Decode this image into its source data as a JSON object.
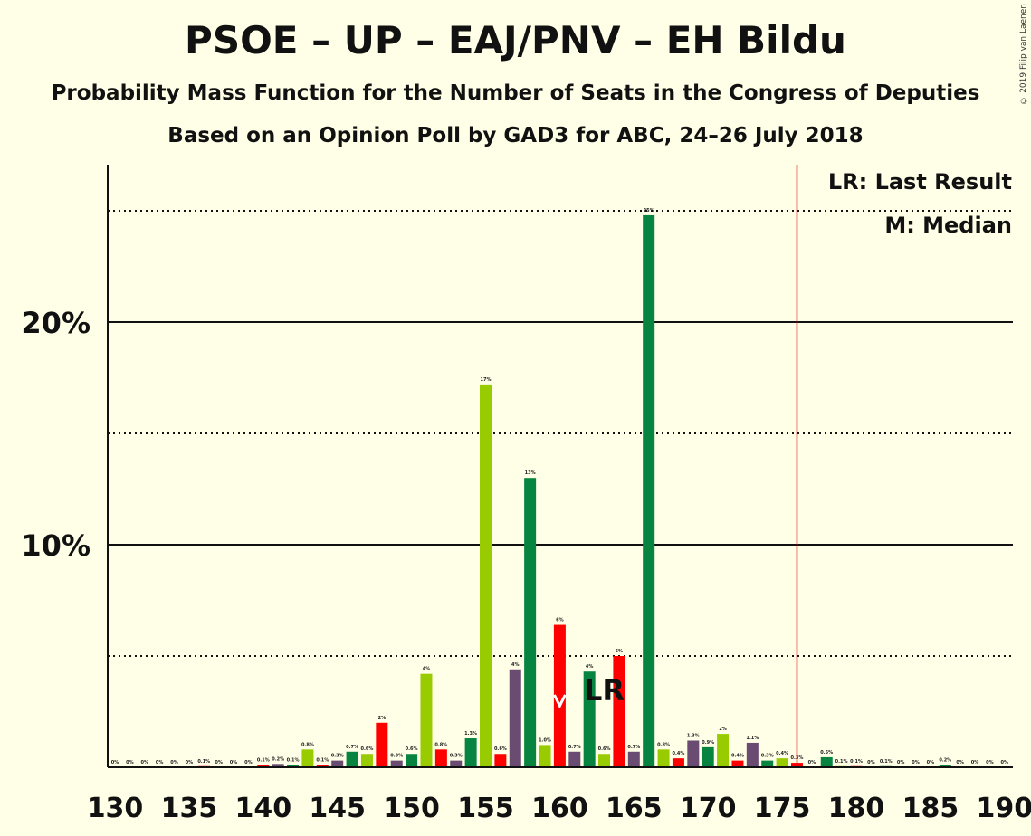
{
  "chart_data": {
    "type": "bar",
    "title": "PSOE – UP – EAJ/PNV – EH Bildu",
    "subtitle": "Probability Mass Function for the Number of Seats in the Congress of Deputies",
    "subtitle2": "Based on an Opinion Poll by GAD3 for ABC, 24–26 July 2018",
    "copyright": "© 2019 Filip van Laenen",
    "legend": [
      "LR: Last Result",
      "M: Median"
    ],
    "legend_placement": "top-right",
    "x_ticks": [
      "130",
      "135",
      "140",
      "145",
      "150",
      "155",
      "160",
      "165",
      "170",
      "175",
      "180",
      "185",
      "190"
    ],
    "y_ticks": [
      {
        "value": 10,
        "label": "10%"
      },
      {
        "value": 20,
        "label": "20%"
      }
    ],
    "dotted_gridlines": [
      5,
      15,
      25
    ],
    "xlim": [
      130,
      190
    ],
    "ylim": [
      0,
      27
    ],
    "majority_line": 176,
    "last_result": 163,
    "last_result_label": "LR",
    "median": 160,
    "colors": {
      "dark_green": "#068440",
      "light_green": "#99CC00",
      "red": "#FF0000",
      "purple": "#6A4C73",
      "majority": "#DD0000",
      "background": "#FFFEE6"
    },
    "bars": [
      {
        "x": 130,
        "value": 0,
        "label": "0%",
        "color": "dark_green"
      },
      {
        "x": 131,
        "value": 0,
        "label": "0%",
        "color": "light_green"
      },
      {
        "x": 132,
        "value": 0,
        "label": "0%",
        "color": "red"
      },
      {
        "x": 133,
        "value": 0,
        "label": "0%",
        "color": "purple"
      },
      {
        "x": 134,
        "value": 0,
        "label": "0%",
        "color": "dark_green"
      },
      {
        "x": 135,
        "value": 0,
        "label": "0%",
        "color": "light_green"
      },
      {
        "x": 136,
        "value": 0.05,
        "label": "0.1%",
        "color": "red"
      },
      {
        "x": 137,
        "value": 0,
        "label": "0%",
        "color": "purple"
      },
      {
        "x": 138,
        "value": 0,
        "label": "0%",
        "color": "dark_green"
      },
      {
        "x": 139,
        "value": 0,
        "label": "0%",
        "color": "light_green"
      },
      {
        "x": 140,
        "value": 0.1,
        "label": "0.1%",
        "color": "red"
      },
      {
        "x": 141,
        "value": 0.15,
        "label": "0.2%",
        "color": "purple"
      },
      {
        "x": 142,
        "value": 0.1,
        "label": "0.1%",
        "color": "dark_green"
      },
      {
        "x": 143,
        "value": 0.8,
        "label": "0.8%",
        "color": "light_green"
      },
      {
        "x": 144,
        "value": 0.1,
        "label": "0.1%",
        "color": "red"
      },
      {
        "x": 145,
        "value": 0.3,
        "label": "0.3%",
        "color": "purple"
      },
      {
        "x": 146,
        "value": 0.7,
        "label": "0.7%",
        "color": "dark_green"
      },
      {
        "x": 147,
        "value": 0.6,
        "label": "0.6%",
        "color": "light_green"
      },
      {
        "x": 148,
        "value": 2.0,
        "label": "2%",
        "color": "red"
      },
      {
        "x": 149,
        "value": 0.3,
        "label": "0.3%",
        "color": "purple"
      },
      {
        "x": 150,
        "value": 0.6,
        "label": "0.6%",
        "color": "dark_green"
      },
      {
        "x": 151,
        "value": 4.2,
        "label": "4%",
        "color": "light_green"
      },
      {
        "x": 152,
        "value": 0.8,
        "label": "0.8%",
        "color": "red"
      },
      {
        "x": 153,
        "value": 0.3,
        "label": "0.3%",
        "color": "purple"
      },
      {
        "x": 154,
        "value": 1.3,
        "label": "1.3%",
        "color": "dark_green"
      },
      {
        "x": 155,
        "value": 17.2,
        "label": "17%",
        "color": "light_green"
      },
      {
        "x": 156,
        "value": 0.6,
        "label": "0.6%",
        "color": "red"
      },
      {
        "x": 157,
        "value": 4.4,
        "label": "4%",
        "color": "purple"
      },
      {
        "x": 158,
        "value": 13.0,
        "label": "13%",
        "color": "dark_green"
      },
      {
        "x": 159,
        "value": 1.0,
        "label": "1.0%",
        "color": "light_green"
      },
      {
        "x": 160,
        "value": 6.4,
        "label": "6%",
        "color": "red"
      },
      {
        "x": 161,
        "value": 0.7,
        "label": "0.7%",
        "color": "purple"
      },
      {
        "x": 162,
        "value": 4.3,
        "label": "4%",
        "color": "dark_green"
      },
      {
        "x": 163,
        "value": 0.6,
        "label": "0.6%",
        "color": "light_green"
      },
      {
        "x": 164,
        "value": 5.0,
        "label": "5%",
        "color": "red"
      },
      {
        "x": 165,
        "value": 0.7,
        "label": "0.7%",
        "color": "purple"
      },
      {
        "x": 166,
        "value": 24.8,
        "label": "25%",
        "color": "dark_green"
      },
      {
        "x": 167,
        "value": 0.8,
        "label": "0.8%",
        "color": "light_green"
      },
      {
        "x": 168,
        "value": 0.4,
        "label": "0.4%",
        "color": "red"
      },
      {
        "x": 169,
        "value": 1.2,
        "label": "1.3%",
        "color": "purple"
      },
      {
        "x": 170,
        "value": 0.9,
        "label": "0.9%",
        "color": "dark_green"
      },
      {
        "x": 171,
        "value": 1.5,
        "label": "2%",
        "color": "light_green"
      },
      {
        "x": 172,
        "value": 0.3,
        "label": "0.4%",
        "color": "red"
      },
      {
        "x": 173,
        "value": 1.1,
        "label": "1.1%",
        "color": "purple"
      },
      {
        "x": 174,
        "value": 0.3,
        "label": "0.3%",
        "color": "dark_green"
      },
      {
        "x": 175,
        "value": 0.4,
        "label": "0.4%",
        "color": "light_green"
      },
      {
        "x": 176,
        "value": 0.2,
        "label": "0.3%",
        "color": "red"
      },
      {
        "x": 177,
        "value": 0,
        "label": "0%",
        "color": "purple"
      },
      {
        "x": 178,
        "value": 0.45,
        "label": "0.5%",
        "color": "dark_green"
      },
      {
        "x": 179,
        "value": 0.05,
        "label": "0.1%",
        "color": "light_green"
      },
      {
        "x": 180,
        "value": 0.05,
        "label": "0.1%",
        "color": "red"
      },
      {
        "x": 181,
        "value": 0,
        "label": "0%",
        "color": "purple"
      },
      {
        "x": 182,
        "value": 0.05,
        "label": "0.1%",
        "color": "dark_green"
      },
      {
        "x": 183,
        "value": 0,
        "label": "0%",
        "color": "light_green"
      },
      {
        "x": 184,
        "value": 0,
        "label": "0%",
        "color": "red"
      },
      {
        "x": 185,
        "value": 0,
        "label": "0%",
        "color": "purple"
      },
      {
        "x": 186,
        "value": 0.1,
        "label": "0.2%",
        "color": "dark_green"
      },
      {
        "x": 187,
        "value": 0,
        "label": "0%",
        "color": "light_green"
      },
      {
        "x": 188,
        "value": 0,
        "label": "0%",
        "color": "red"
      },
      {
        "x": 189,
        "value": 0,
        "label": "0%",
        "color": "purple"
      },
      {
        "x": 190,
        "value": 0,
        "label": "0%",
        "color": "dark_green"
      }
    ]
  }
}
